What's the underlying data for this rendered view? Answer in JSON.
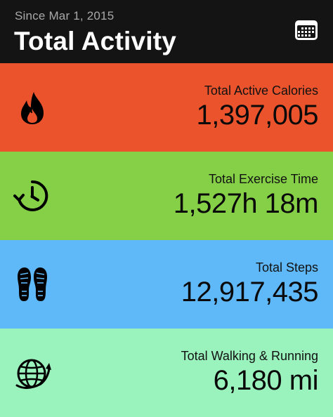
{
  "header": {
    "subtitle": "Since Mar 1, 2015",
    "title": "Total Activity",
    "calendar_icon": "calendar-icon"
  },
  "tiles": [
    {
      "id": "calories",
      "icon": "flame-icon",
      "label": "Total Active Calories",
      "value": "1,397,005",
      "color": "#ea532b"
    },
    {
      "id": "exercise",
      "icon": "stopwatch-icon",
      "label": "Total Exercise Time",
      "value": "1,527h 18m",
      "color": "#85d046"
    },
    {
      "id": "steps",
      "icon": "shoe-prints-icon",
      "label": "Total Steps",
      "value": "12,917,435",
      "color": "#5fb8f8"
    },
    {
      "id": "walking",
      "icon": "globe-icon",
      "label": "Total Walking & Running",
      "value": "6,180 mi",
      "color": "#9af3bd"
    }
  ]
}
